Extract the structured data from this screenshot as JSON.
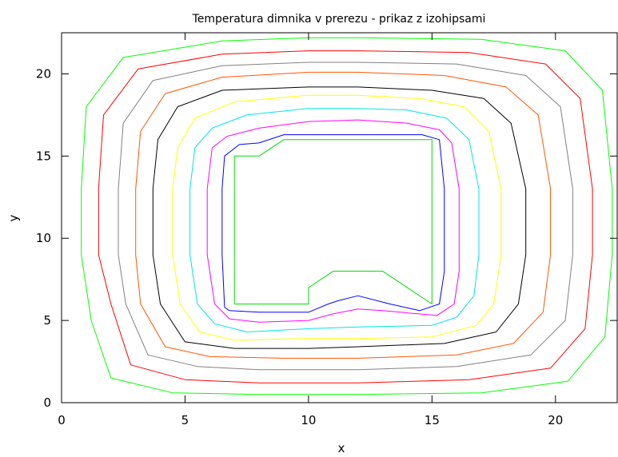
{
  "chart_data": {
    "type": "line",
    "title": "Temperatura dimnika v prerezu - prikaz z izohipsami",
    "xlabel": "x",
    "ylabel": "y",
    "xlim": [
      0,
      22.5
    ],
    "ylim": [
      0,
      22.5
    ],
    "x_ticks": [
      0,
      5,
      10,
      15,
      20
    ],
    "y_ticks": [
      0,
      5,
      10,
      15,
      20
    ],
    "x_tick_labels": [
      "0",
      "5",
      "10",
      "15",
      "20"
    ],
    "y_tick_labels": [
      "0",
      "5",
      "10",
      "15",
      "20"
    ],
    "grid": false,
    "legend": "none",
    "series": [
      {
        "color": "#00dd00",
        "points": [
          [
            7,
            6
          ],
          [
            7,
            15
          ],
          [
            8,
            15
          ],
          [
            9,
            16
          ],
          [
            15,
            16
          ],
          [
            15,
            6
          ],
          [
            13,
            8
          ],
          [
            11,
            8
          ],
          [
            10,
            7
          ],
          [
            10,
            6
          ],
          [
            7,
            6
          ]
        ]
      },
      {
        "color": "#0000ff",
        "points": [
          [
            6.6,
            5.8
          ],
          [
            6.5,
            9
          ],
          [
            6.5,
            13
          ],
          [
            6.6,
            15
          ],
          [
            7.2,
            15.7
          ],
          [
            8,
            15.8
          ],
          [
            9,
            16.3
          ],
          [
            12,
            16.3
          ],
          [
            14.6,
            16.3
          ],
          [
            15.3,
            16
          ],
          [
            15.5,
            13
          ],
          [
            15.5,
            8
          ],
          [
            15.3,
            6
          ],
          [
            14.5,
            5.6
          ],
          [
            13.3,
            6
          ],
          [
            12,
            6.5
          ],
          [
            11.2,
            6.2
          ],
          [
            10.8,
            6
          ],
          [
            10,
            5.5
          ],
          [
            8,
            5.5
          ],
          [
            6.8,
            5.6
          ],
          [
            6.6,
            5.8
          ]
        ]
      },
      {
        "color": "#ff00ff",
        "points": [
          [
            6.2,
            6
          ],
          [
            5.9,
            9
          ],
          [
            5.9,
            13
          ],
          [
            6.1,
            15.5
          ],
          [
            6.7,
            16.2
          ],
          [
            8,
            16.7
          ],
          [
            10,
            17.1
          ],
          [
            12,
            17.2
          ],
          [
            14,
            17
          ],
          [
            15.3,
            16.6
          ],
          [
            15.8,
            15.8
          ],
          [
            16.1,
            13
          ],
          [
            16.1,
            8
          ],
          [
            15.9,
            6
          ],
          [
            15.2,
            5.3
          ],
          [
            13,
            5.6
          ],
          [
            12,
            5.7
          ],
          [
            11,
            5.4
          ],
          [
            10,
            5
          ],
          [
            8,
            4.9
          ],
          [
            6.8,
            5.1
          ],
          [
            6.2,
            6
          ]
        ]
      },
      {
        "color": "#00e5e5",
        "points": [
          [
            5.5,
            6
          ],
          [
            5.2,
            9
          ],
          [
            5.2,
            13
          ],
          [
            5.4,
            15.5
          ],
          [
            6.1,
            16.7
          ],
          [
            7.5,
            17.5
          ],
          [
            10,
            17.9
          ],
          [
            12,
            17.9
          ],
          [
            14,
            17.8
          ],
          [
            15.6,
            17.3
          ],
          [
            16.5,
            16
          ],
          [
            16.9,
            13
          ],
          [
            16.9,
            9
          ],
          [
            16.7,
            6.5
          ],
          [
            16,
            5.2
          ],
          [
            15,
            4.7
          ],
          [
            12,
            4.6
          ],
          [
            10,
            4.5
          ],
          [
            7.5,
            4.3
          ],
          [
            6.2,
            4.8
          ],
          [
            5.5,
            6
          ]
        ]
      },
      {
        "color": "#ffff00",
        "points": [
          [
            4.8,
            6
          ],
          [
            4.5,
            9
          ],
          [
            4.5,
            13
          ],
          [
            4.7,
            15.5
          ],
          [
            5.4,
            17.3
          ],
          [
            7,
            18.3
          ],
          [
            10,
            18.7
          ],
          [
            12,
            18.7
          ],
          [
            14.5,
            18.5
          ],
          [
            16.3,
            18
          ],
          [
            17.3,
            16.5
          ],
          [
            17.8,
            13
          ],
          [
            17.8,
            9
          ],
          [
            17.5,
            6
          ],
          [
            16.8,
            4.7
          ],
          [
            15,
            4
          ],
          [
            12,
            3.9
          ],
          [
            10,
            3.9
          ],
          [
            7,
            3.8
          ],
          [
            5.6,
            4.3
          ],
          [
            4.8,
            6
          ]
        ]
      },
      {
        "color": "#000000",
        "points": [
          [
            4,
            6
          ],
          [
            3.7,
            9
          ],
          [
            3.7,
            13
          ],
          [
            3.9,
            16
          ],
          [
            4.7,
            18
          ],
          [
            6.5,
            19
          ],
          [
            10,
            19.2
          ],
          [
            12,
            19.2
          ],
          [
            15,
            19
          ],
          [
            17.1,
            18.5
          ],
          [
            18.2,
            17
          ],
          [
            18.8,
            13
          ],
          [
            18.8,
            9
          ],
          [
            18.5,
            6
          ],
          [
            17.6,
            4.3
          ],
          [
            15.5,
            3.6
          ],
          [
            12,
            3.4
          ],
          [
            10,
            3.3
          ],
          [
            7,
            3.3
          ],
          [
            5,
            3.7
          ],
          [
            4,
            6
          ]
        ]
      },
      {
        "color": "#ff5500",
        "points": [
          [
            3.2,
            6
          ],
          [
            3,
            9
          ],
          [
            3,
            13
          ],
          [
            3.2,
            16.5
          ],
          [
            4.2,
            18.8
          ],
          [
            6.5,
            19.8
          ],
          [
            10,
            20.1
          ],
          [
            12,
            20.1
          ],
          [
            15.5,
            19.9
          ],
          [
            18,
            19.2
          ],
          [
            19.3,
            17.5
          ],
          [
            19.8,
            13
          ],
          [
            19.8,
            9
          ],
          [
            19.5,
            5.5
          ],
          [
            18.3,
            3.6
          ],
          [
            16,
            2.9
          ],
          [
            12,
            2.7
          ],
          [
            9,
            2.7
          ],
          [
            6,
            2.8
          ],
          [
            4.2,
            3.4
          ],
          [
            3.2,
            6
          ]
        ]
      },
      {
        "color": "#808080",
        "points": [
          [
            2.6,
            6
          ],
          [
            2.3,
            9
          ],
          [
            2.3,
            13
          ],
          [
            2.5,
            17
          ],
          [
            3.7,
            19.6
          ],
          [
            6.5,
            20.5
          ],
          [
            10,
            20.7
          ],
          [
            12,
            20.7
          ],
          [
            16,
            20.6
          ],
          [
            18.8,
            19.9
          ],
          [
            20.2,
            18
          ],
          [
            20.7,
            13
          ],
          [
            20.7,
            9
          ],
          [
            20.4,
            5
          ],
          [
            19,
            2.9
          ],
          [
            16,
            2.2
          ],
          [
            12,
            2
          ],
          [
            8,
            2
          ],
          [
            5.5,
            2.2
          ],
          [
            3.5,
            2.9
          ],
          [
            2.6,
            6
          ]
        ]
      },
      {
        "color": "#ff0000",
        "points": [
          [
            2,
            6
          ],
          [
            1.5,
            9
          ],
          [
            1.5,
            13
          ],
          [
            1.7,
            17.5
          ],
          [
            3.1,
            20.3
          ],
          [
            6.5,
            21.2
          ],
          [
            10,
            21.4
          ],
          [
            12,
            21.4
          ],
          [
            16.5,
            21.3
          ],
          [
            19.6,
            20.6
          ],
          [
            21,
            18.5
          ],
          [
            21.5,
            13
          ],
          [
            21.5,
            9
          ],
          [
            21.2,
            4.5
          ],
          [
            19.8,
            2.1
          ],
          [
            16.5,
            1.4
          ],
          [
            12,
            1.2
          ],
          [
            8,
            1.2
          ],
          [
            5,
            1.4
          ],
          [
            2.8,
            2.3
          ],
          [
            2,
            6
          ]
        ]
      },
      {
        "color": "#00ff00",
        "points": [
          [
            1.2,
            5
          ],
          [
            0.8,
            9
          ],
          [
            0.8,
            13
          ],
          [
            1,
            18
          ],
          [
            2.5,
            21
          ],
          [
            6.5,
            22
          ],
          [
            10,
            22.2
          ],
          [
            12,
            22.2
          ],
          [
            17,
            22.1
          ],
          [
            20.4,
            21.4
          ],
          [
            21.9,
            19
          ],
          [
            22.3,
            13
          ],
          [
            22.3,
            9
          ],
          [
            22,
            4
          ],
          [
            20.5,
            1.3
          ],
          [
            17,
            0.6
          ],
          [
            12,
            0.5
          ],
          [
            8,
            0.5
          ],
          [
            4.5,
            0.6
          ],
          [
            2,
            1.5
          ],
          [
            1.2,
            5
          ]
        ]
      }
    ]
  }
}
